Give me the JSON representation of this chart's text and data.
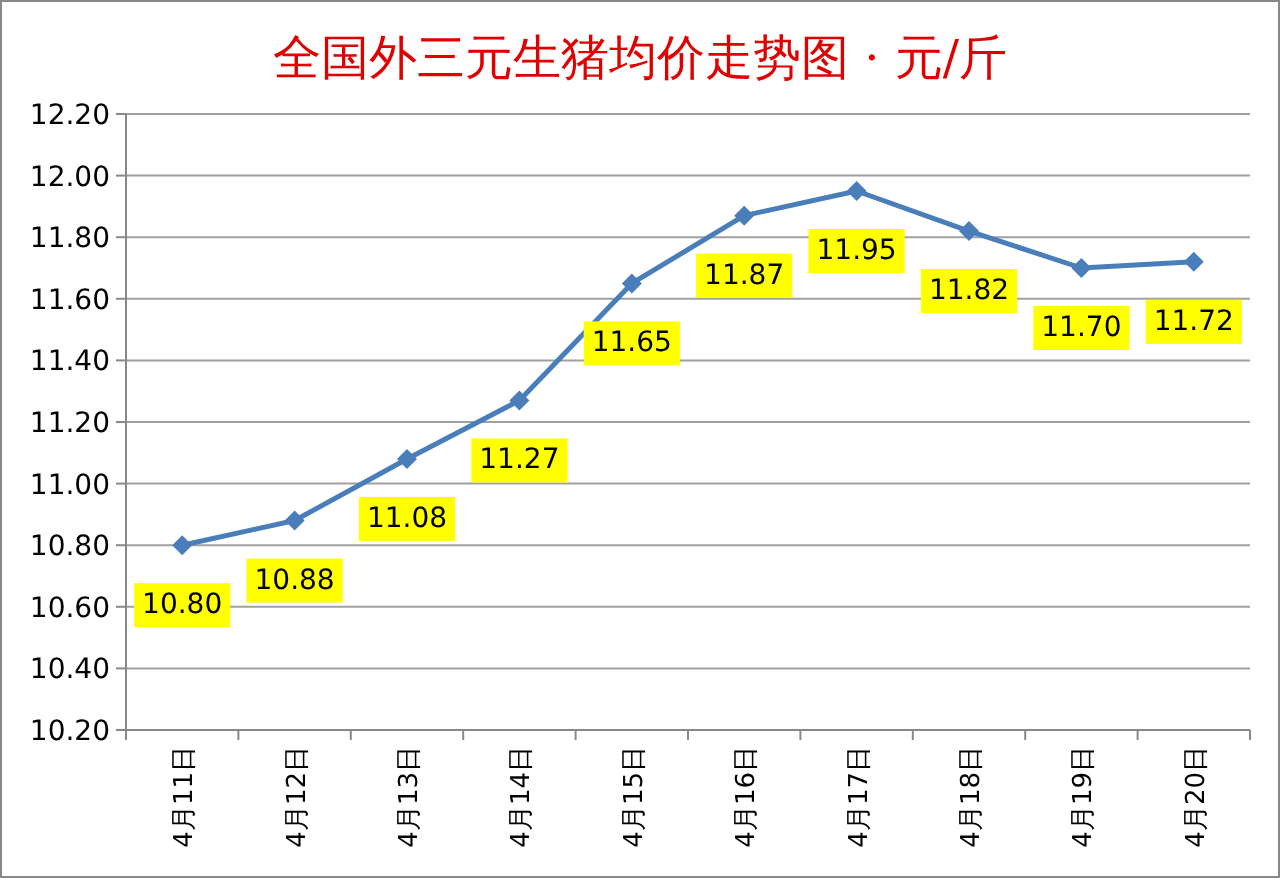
{
  "chart_data": {
    "type": "line",
    "title": "全国外三元生猪均价走势图 · 元/斤",
    "categories": [
      "4月11日",
      "4月12日",
      "4月13日",
      "4月14日",
      "4月15日",
      "4月16日",
      "4月17日",
      "4月18日",
      "4月19日",
      "4月20日"
    ],
    "values": [
      10.8,
      10.88,
      11.08,
      11.27,
      11.65,
      11.87,
      11.95,
      11.82,
      11.7,
      11.72
    ],
    "value_labels": [
      "10.80",
      "10.88",
      "11.08",
      "11.27",
      "11.65",
      "11.87",
      "11.95",
      "11.82",
      "11.70",
      "11.72"
    ],
    "color": "#4a7ebb",
    "marker": "diamond",
    "grid": "y",
    "ylim": [
      10.2,
      12.2
    ],
    "yticks": [
      {
        "value": 10.2,
        "label": "10.20"
      },
      {
        "value": 10.4,
        "label": "10.40"
      },
      {
        "value": 10.6,
        "label": "10.60"
      },
      {
        "value": 10.8,
        "label": "10.80"
      },
      {
        "value": 11.0,
        "label": "11.00"
      },
      {
        "value": 11.2,
        "label": "11.20"
      },
      {
        "value": 11.4,
        "label": "11.40"
      },
      {
        "value": 11.6,
        "label": "11.60"
      },
      {
        "value": 11.8,
        "label": "11.80"
      },
      {
        "value": 12.0,
        "label": "12.00"
      },
      {
        "value": 12.2,
        "label": "12.20"
      }
    ]
  }
}
